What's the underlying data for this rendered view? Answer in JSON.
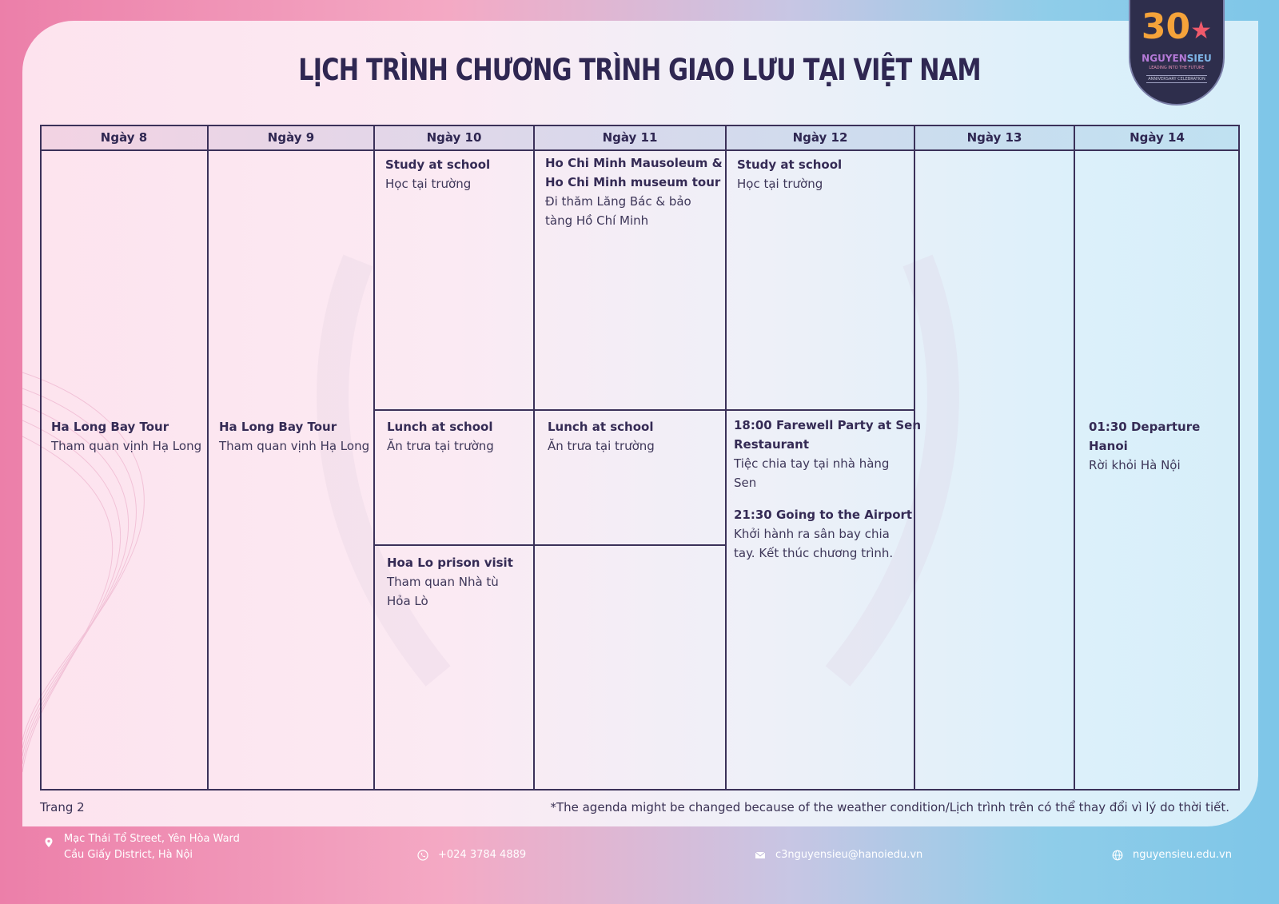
{
  "title": "LỊCH TRÌNH CHƯƠNG TRÌNH GIAO LƯU TẠI VIỆT NAM",
  "badge": {
    "number": "30",
    "brand_a": "NGUYEN",
    "brand_b": "SIEU",
    "tagline": "LEADING INTO THE FUTURE",
    "celebration": "ANNIVERSARY CELEBRATION",
    "colors": {
      "bg": "#2e2e4c",
      "number": "#f5a33a",
      "star": "#ef5a6b"
    }
  },
  "days": [
    "Ngày 8",
    "Ngày 9",
    "Ngày 10",
    "Ngày 11",
    "Ngày 12",
    "Ngày 13",
    "Ngày 14"
  ],
  "schedule": {
    "d8": {
      "en": "Ha Long Bay Tour",
      "vi": "Tham quan vịnh Hạ Long"
    },
    "d9": {
      "en": "Ha Long Bay Tour",
      "vi": "Tham quan vịnh Hạ Long"
    },
    "d10_morning": {
      "en": "Study at school",
      "vi": "Học tại trường"
    },
    "d10_lunch": {
      "en": "Lunch at school",
      "vi": "Ăn trưa tại trường"
    },
    "d10_afternoon": {
      "en": "Hoa Lo prison visit",
      "vi1": "Tham quan Nhà tù",
      "vi2": "Hỏa Lò"
    },
    "d11_morning": {
      "en1": "Ho Chi Minh Mausoleum &",
      "en2": "Ho Chi Minh museum tour",
      "vi1": "Đi thăm Lăng Bác & bảo",
      "vi2": "tàng Hồ Chí Minh"
    },
    "d11_lunch": {
      "en": "Lunch at school",
      "vi": "Ăn trưa tại trường"
    },
    "d12_morning": {
      "en": "Study at school",
      "vi": "Học tại trường"
    },
    "d12_evening": {
      "en1a": "18:00 Farewell Party at Sen",
      "en1b": "Restaurant",
      "vi1a": "Tiệc chia tay tại nhà hàng",
      "vi1b": "Sen",
      "en2": "21:30 Going to the Airport",
      "vi2a": "Khởi hành ra sân bay chia",
      "vi2b": "tay. Kết thúc chương trình."
    },
    "d14": {
      "en": "01:30 Departure Hanoi",
      "vi": "Rời khỏi Hà Nội"
    }
  },
  "page_label": "Trang 2",
  "note": "*The agenda might be changed because of the weather condition/Lịch trình trên có thể thay đổi vì lý do thời tiết.",
  "footer": {
    "address1": "Mạc Thái Tổ Street, Yên Hòa Ward",
    "address2": "Cầu Giấy District, Hà Nội",
    "phone": "+024 3784 4889",
    "email": "c3nguyensieu@hanoiedu.vn",
    "website": "nguyensieu.edu.vn",
    "icons": [
      "location-pin-icon",
      "phone-icon",
      "mail-icon",
      "globe-icon"
    ]
  }
}
